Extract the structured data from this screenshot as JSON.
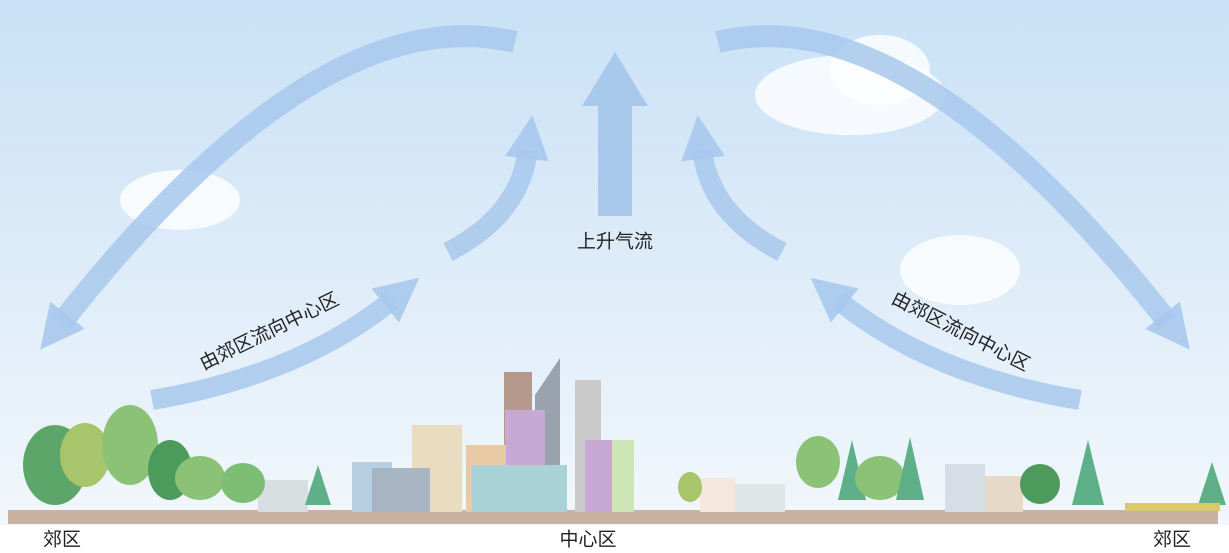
{
  "labels": {
    "updraft": "上升气流",
    "left_flow": "由郊区流向中心区",
    "right_flow": "由郊区流向中心区",
    "left_suburb": "郊区",
    "center": "中心区",
    "right_suburb": "郊区"
  }
}
